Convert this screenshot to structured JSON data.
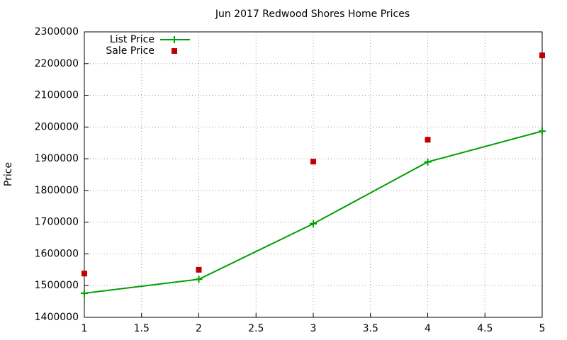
{
  "chart_data": {
    "type": "line",
    "title": "Jun 2017 Redwood Shores Home Prices",
    "y_label": "Price",
    "x": [
      1,
      2,
      3,
      4,
      5
    ],
    "series": [
      {
        "name": "List Price",
        "color": "#00a000",
        "style": "linespoints",
        "values": [
          1476000,
          1520000,
          1695000,
          1890000,
          1987000
        ]
      },
      {
        "name": "Sale Price",
        "color": "#c00000",
        "style": "points",
        "values": [
          1538000,
          1550000,
          1891000,
          1960000,
          2226000
        ]
      }
    ],
    "xlim": [
      1,
      5
    ],
    "xticks": [
      1,
      1.5,
      2,
      2.5,
      3,
      3.5,
      4,
      4.5,
      5
    ],
    "ylim": [
      1400000,
      2300000
    ],
    "yticks": [
      1400000,
      1500000,
      1600000,
      1700000,
      1800000,
      1900000,
      2000000,
      2100000,
      2200000,
      2300000
    ],
    "grid": true,
    "legend": "top-left"
  }
}
